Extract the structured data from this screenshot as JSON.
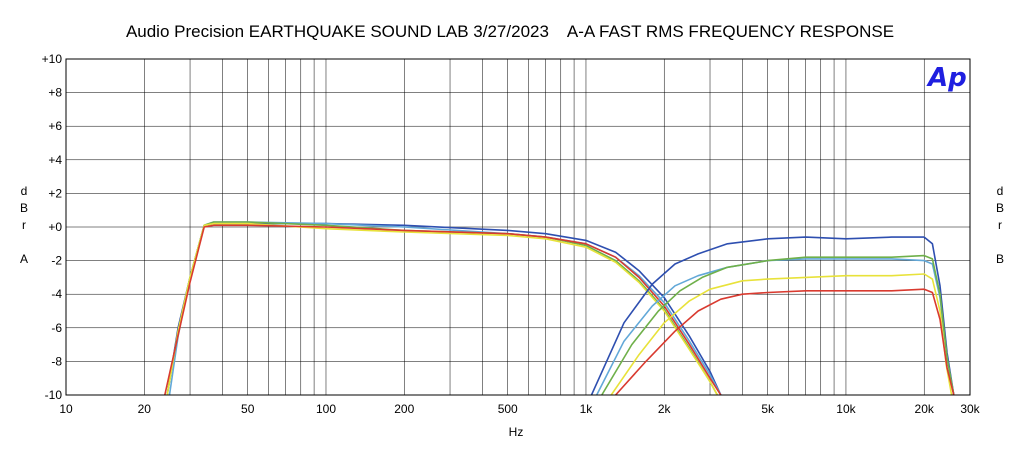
{
  "chart_data": {
    "type": "line",
    "title": "Audio Precision EARTHQUAKE SOUND LAB 3/27/2023    A-A FAST RMS FREQUENCY RESPONSE",
    "logo_text": "Ap",
    "logo_color": "#1f1fe0",
    "xlabel": "Hz",
    "x_scale": "log",
    "xlim": [
      10,
      30000
    ],
    "x_ticks": [
      {
        "value": 10,
        "label": "10"
      },
      {
        "value": 20,
        "label": "20"
      },
      {
        "value": 50,
        "label": "50"
      },
      {
        "value": 100,
        "label": "100"
      },
      {
        "value": 200,
        "label": "200"
      },
      {
        "value": 500,
        "label": "500"
      },
      {
        "value": 1000,
        "label": "1k"
      },
      {
        "value": 2000,
        "label": "2k"
      },
      {
        "value": 5000,
        "label": "5k"
      },
      {
        "value": 10000,
        "label": "10k"
      },
      {
        "value": 20000,
        "label": "20k"
      },
      {
        "value": 30000,
        "label": "30k"
      }
    ],
    "x_gridlines": [
      20,
      30,
      40,
      50,
      60,
      70,
      80,
      90,
      100,
      200,
      300,
      400,
      500,
      600,
      700,
      800,
      900,
      1000,
      2000,
      3000,
      4000,
      5000,
      6000,
      7000,
      8000,
      9000,
      10000,
      20000
    ],
    "ylim": [
      -10,
      10
    ],
    "y_ticks": [
      {
        "value": 10,
        "label": "+10"
      },
      {
        "value": 8,
        "label": "+8"
      },
      {
        "value": 6,
        "label": "+6"
      },
      {
        "value": 4,
        "label": "+4"
      },
      {
        "value": 2,
        "label": "+2"
      },
      {
        "value": 0,
        "label": "+0"
      },
      {
        "value": -2,
        "label": "-2"
      },
      {
        "value": -4,
        "label": "-4"
      },
      {
        "value": -6,
        "label": "-6"
      },
      {
        "value": -8,
        "label": "-8"
      },
      {
        "value": -10,
        "label": "-10"
      }
    ],
    "ylabel_left": [
      "d",
      "B",
      "r",
      "",
      "A"
    ],
    "ylabel_right": [
      "d",
      "B",
      "r",
      "",
      "B"
    ],
    "grid": true,
    "series": [
      {
        "color": "#2e4fb0",
        "x": [
          24.5,
          27,
          30,
          34,
          37,
          50,
          100,
          200,
          500,
          700,
          1000,
          1300,
          1600,
          2000,
          2500,
          3000,
          3300
        ],
        "y": [
          -10,
          -6,
          -3,
          0.1,
          0.2,
          0.2,
          0.2,
          0.1,
          -0.2,
          -0.4,
          -0.8,
          -1.5,
          -2.6,
          -4.2,
          -6.5,
          -8.6,
          -10
        ]
      },
      {
        "color": "#62a8d8",
        "x": [
          25,
          27,
          30,
          34,
          37,
          50,
          100,
          200,
          500,
          700,
          1000,
          1300,
          1600,
          2000,
          2500,
          3000,
          3300
        ],
        "y": [
          -10,
          -6.5,
          -3,
          0.1,
          0.3,
          0.3,
          0.2,
          0,
          -0.4,
          -0.6,
          -1,
          -1.8,
          -2.9,
          -4.5,
          -6.8,
          -8.8,
          -10
        ]
      },
      {
        "color": "#6fb04a",
        "x": [
          24.5,
          27,
          30,
          34,
          37,
          50,
          100,
          200,
          500,
          700,
          1000,
          1300,
          1600,
          2000,
          2500,
          3000,
          3200
        ],
        "y": [
          -10,
          -6.2,
          -3,
          0.1,
          0.3,
          0.3,
          0.1,
          -0.2,
          -0.4,
          -0.6,
          -1.1,
          -2,
          -3.2,
          -4.9,
          -7.2,
          -9.2,
          -10
        ]
      },
      {
        "color": "#e8e23a",
        "x": [
          24.5,
          27,
          30,
          34,
          37,
          50,
          100,
          200,
          500,
          700,
          1000,
          1300,
          1600,
          2000,
          2500,
          3000,
          3200
        ],
        "y": [
          -10,
          -6.2,
          -3,
          0.1,
          0.2,
          0.2,
          -0.1,
          -0.3,
          -0.5,
          -0.7,
          -1.2,
          -2.1,
          -3.3,
          -5,
          -7.3,
          -9.2,
          -10
        ]
      },
      {
        "color": "#d93a2f",
        "x": [
          24,
          26.5,
          30,
          34,
          37,
          50,
          100,
          200,
          500,
          700,
          1000,
          1300,
          1600,
          2000,
          2500,
          3000,
          3300
        ],
        "y": [
          -10,
          -7,
          -3.3,
          0,
          0.1,
          0.1,
          0,
          -0.2,
          -0.4,
          -0.6,
          -1,
          -1.8,
          -3,
          -4.7,
          -7,
          -9,
          -10
        ]
      },
      {
        "color": "#2e4fb0",
        "x": [
          1050,
          1400,
          1800,
          2200,
          2700,
          3500,
          5000,
          7000,
          10000,
          15000,
          20000,
          21500,
          23000,
          24500,
          26000
        ],
        "y": [
          -10,
          -5.7,
          -3.4,
          -2.2,
          -1.6,
          -1,
          -0.7,
          -0.6,
          -0.7,
          -0.6,
          -0.6,
          -1,
          -3.5,
          -7.5,
          -10
        ]
      },
      {
        "color": "#62a8d8",
        "x": [
          1100,
          1400,
          1800,
          2200,
          2700,
          3500,
          5000,
          7000,
          10000,
          15000,
          20000,
          21500,
          23000,
          24500,
          26000
        ],
        "y": [
          -10,
          -6.8,
          -4.7,
          -3.5,
          -2.9,
          -2.4,
          -2,
          -1.9,
          -1.9,
          -1.9,
          -2,
          -2.2,
          -4.2,
          -7.8,
          -10
        ]
      },
      {
        "color": "#6fb04a",
        "x": [
          1150,
          1500,
          1900,
          2300,
          2800,
          3500,
          5000,
          7000,
          10000,
          15000,
          20000,
          21500,
          23000,
          24500,
          26000
        ],
        "y": [
          -10,
          -7,
          -5,
          -3.8,
          -3,
          -2.4,
          -2,
          -1.8,
          -1.8,
          -1.8,
          -1.7,
          -1.9,
          -4,
          -7.8,
          -10
        ]
      },
      {
        "color": "#e8e23a",
        "x": [
          1250,
          1600,
          2000,
          2500,
          3000,
          4000,
          5000,
          7000,
          10000,
          15000,
          20000,
          21500,
          23000,
          24300,
          25500
        ],
        "y": [
          -10,
          -7.6,
          -5.7,
          -4.4,
          -3.7,
          -3.2,
          -3.1,
          -3,
          -2.9,
          -2.9,
          -2.8,
          -3.1,
          -5,
          -8.2,
          -10
        ]
      },
      {
        "color": "#d93a2f",
        "x": [
          1300,
          1700,
          2200,
          2700,
          3300,
          4000,
          5000,
          7000,
          10000,
          15000,
          20000,
          21500,
          23000,
          24500,
          26000
        ],
        "y": [
          -10,
          -8,
          -6.2,
          -5,
          -4.3,
          -4,
          -3.9,
          -3.8,
          -3.8,
          -3.8,
          -3.7,
          -3.9,
          -5.5,
          -8.4,
          -10
        ]
      }
    ]
  }
}
